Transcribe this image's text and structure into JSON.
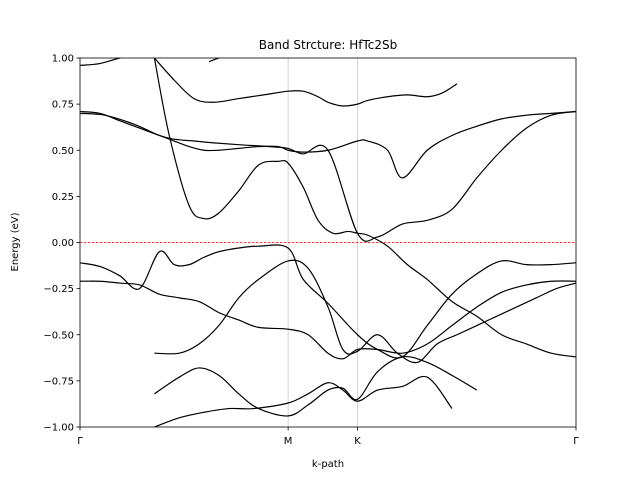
{
  "chart_data": {
    "type": "line",
    "title": "Band Strcture: HfTc2Sb",
    "xlabel": "k-path",
    "ylabel": "Energy (eV)",
    "xlim": [
      0,
      1
    ],
    "ylim": [
      -1.0,
      1.0
    ],
    "yticks": [
      -1.0,
      -0.75,
      -0.5,
      -0.25,
      0.0,
      0.25,
      0.5,
      0.75,
      1.0
    ],
    "ytick_labels": [
      "−1.00",
      "−0.75",
      "−0.50",
      "−0.25",
      "0.00",
      "0.25",
      "0.50",
      "0.75",
      "1.00"
    ],
    "high_symmetry_points": [
      {
        "label": "Γ",
        "x": 0.0
      },
      {
        "label": "M",
        "x": 0.4196
      },
      {
        "label": "K",
        "x": 0.5595
      },
      {
        "label": "Γ",
        "x": 1.0
      }
    ],
    "fermi_level": 0.0,
    "fermi_color": "#ff0000",
    "band_color": "#000000",
    "grid": "vertical lines at high-symmetry points",
    "legend": "none",
    "series": [
      {
        "x": [
          0.0,
          0.04,
          0.08,
          0.13,
          0.19,
          0.26,
          0.32,
          0.3,
          0.28,
          0.26
        ],
        "values": [
          0.96,
          0.97,
          1.0,
          1.03,
          1.06,
          1.08,
          1.05,
          1.02,
          1.0,
          0.98
        ]
      },
      {
        "x": [
          0.0,
          0.05,
          0.11,
          0.16,
          0.19,
          0.23,
          0.27,
          0.32,
          0.38,
          0.4196,
          0.45,
          0.5,
          0.5595,
          0.6,
          0.65,
          0.7,
          0.75,
          0.8,
          0.85,
          0.9,
          0.95,
          1.0
        ],
        "values": [
          0.7,
          0.69,
          0.64,
          0.58,
          0.56,
          0.55,
          0.54,
          0.53,
          0.52,
          0.51,
          0.48,
          0.5,
          0.05,
          0.03,
          0.1,
          0.12,
          0.18,
          0.35,
          0.5,
          0.62,
          0.69,
          0.71
        ]
      },
      {
        "x": [
          0.0,
          0.04,
          0.08,
          0.12,
          0.16,
          0.19,
          0.22,
          0.25,
          0.28,
          0.32,
          0.36,
          0.4,
          0.4196,
          0.45,
          0.5,
          0.5595,
          0.58,
          0.62,
          0.65,
          0.7,
          0.75,
          0.8,
          0.85,
          0.9,
          0.95,
          1.0
        ],
        "values": [
          0.71,
          0.7,
          0.66,
          0.62,
          0.58,
          0.55,
          0.52,
          0.5,
          0.5,
          0.51,
          0.52,
          0.52,
          0.5,
          0.49,
          0.5,
          0.55,
          0.55,
          0.5,
          0.35,
          0.5,
          0.58,
          0.63,
          0.67,
          0.69,
          0.7,
          0.71
        ]
      },
      {
        "x": [
          0.15,
          0.19,
          0.23,
          0.27,
          0.32,
          0.37,
          0.4196,
          0.45,
          0.48,
          0.5,
          0.53,
          0.5595,
          0.58,
          0.62,
          0.66,
          0.7,
          0.73,
          0.76
        ],
        "values": [
          1.0,
          0.88,
          0.78,
          0.76,
          0.78,
          0.8,
          0.82,
          0.82,
          0.79,
          0.76,
          0.74,
          0.75,
          0.77,
          0.79,
          0.8,
          0.79,
          0.81,
          0.86
        ]
      },
      {
        "x": [
          0.15,
          0.18,
          0.22,
          0.25,
          0.28,
          0.32,
          0.36,
          0.4,
          0.4196,
          0.45,
          0.48,
          0.51,
          0.54,
          0.5595,
          0.58,
          0.62,
          0.66,
          0.7,
          0.75,
          0.8,
          0.85,
          0.9,
          0.95,
          1.0
        ],
        "values": [
          1.0,
          0.58,
          0.2,
          0.13,
          0.16,
          0.28,
          0.42,
          0.44,
          0.43,
          0.3,
          0.12,
          0.05,
          0.06,
          0.05,
          0.04,
          -0.02,
          -0.12,
          -0.2,
          -0.32,
          -0.4,
          -0.5,
          -0.55,
          -0.6,
          -0.62
        ]
      },
      {
        "x": [
          0.0,
          0.04,
          0.08,
          0.12,
          0.16,
          0.19,
          0.22,
          0.25,
          0.28,
          0.32,
          0.36,
          0.4196,
          0.45,
          0.5,
          0.5595,
          0.6,
          0.65,
          0.7,
          0.75,
          0.8,
          0.85,
          0.9,
          0.95,
          1.0
        ],
        "values": [
          -0.11,
          -0.13,
          -0.18,
          -0.25,
          -0.05,
          -0.12,
          -0.12,
          -0.08,
          -0.05,
          -0.03,
          -0.02,
          -0.03,
          -0.2,
          -0.33,
          -0.5,
          -0.58,
          -0.62,
          -0.45,
          -0.28,
          -0.17,
          -0.1,
          -0.12,
          -0.12,
          -0.11
        ]
      },
      {
        "x": [
          0.0,
          0.04,
          0.08,
          0.12,
          0.16,
          0.2,
          0.24,
          0.28,
          0.32,
          0.36,
          0.4196,
          0.46,
          0.5,
          0.53,
          0.5595,
          0.6,
          0.65,
          0.7,
          0.75,
          0.8,
          0.85,
          0.9,
          0.95,
          1.0
        ],
        "values": [
          -0.21,
          -0.21,
          -0.22,
          -0.23,
          -0.28,
          -0.3,
          -0.32,
          -0.38,
          -0.42,
          -0.46,
          -0.47,
          -0.5,
          -0.6,
          -0.63,
          -0.58,
          -0.58,
          -0.6,
          -0.55,
          -0.45,
          -0.35,
          -0.27,
          -0.23,
          -0.21,
          -0.21
        ]
      },
      {
        "x": [
          0.15,
          0.2,
          0.24,
          0.28,
          0.32,
          0.36,
          0.4196,
          0.46,
          0.5,
          0.53,
          0.5595,
          0.6,
          0.64,
          0.68,
          0.72,
          0.76,
          0.8,
          0.84,
          0.88,
          0.92,
          0.96,
          1.0
        ],
        "values": [
          -0.6,
          -0.6,
          -0.55,
          -0.45,
          -0.3,
          -0.2,
          -0.1,
          -0.14,
          -0.35,
          -0.58,
          -0.59,
          -0.5,
          -0.6,
          -0.65,
          -0.55,
          -0.5,
          -0.45,
          -0.4,
          -0.35,
          -0.3,
          -0.25,
          -0.22
        ]
      },
      {
        "x": [
          0.15,
          0.2,
          0.24,
          0.28,
          0.32,
          0.36,
          0.4196,
          0.46,
          0.5,
          0.53,
          0.5595,
          0.6,
          0.65,
          0.7,
          0.75,
          0.8
        ],
        "values": [
          -0.82,
          -0.73,
          -0.68,
          -0.72,
          -0.82,
          -0.9,
          -0.94,
          -0.88,
          -0.8,
          -0.79,
          -0.85,
          -0.7,
          -0.62,
          -0.65,
          -0.72,
          -0.8
        ]
      },
      {
        "x": [
          0.15,
          0.2,
          0.25,
          0.3,
          0.35,
          0.4196,
          0.46,
          0.5,
          0.53,
          0.5595,
          0.6,
          0.65,
          0.7,
          0.75
        ],
        "values": [
          -1.0,
          -0.95,
          -0.92,
          -0.9,
          -0.9,
          -0.87,
          -0.82,
          -0.76,
          -0.8,
          -0.86,
          -0.8,
          -0.78,
          -0.73,
          -0.9
        ]
      }
    ]
  }
}
